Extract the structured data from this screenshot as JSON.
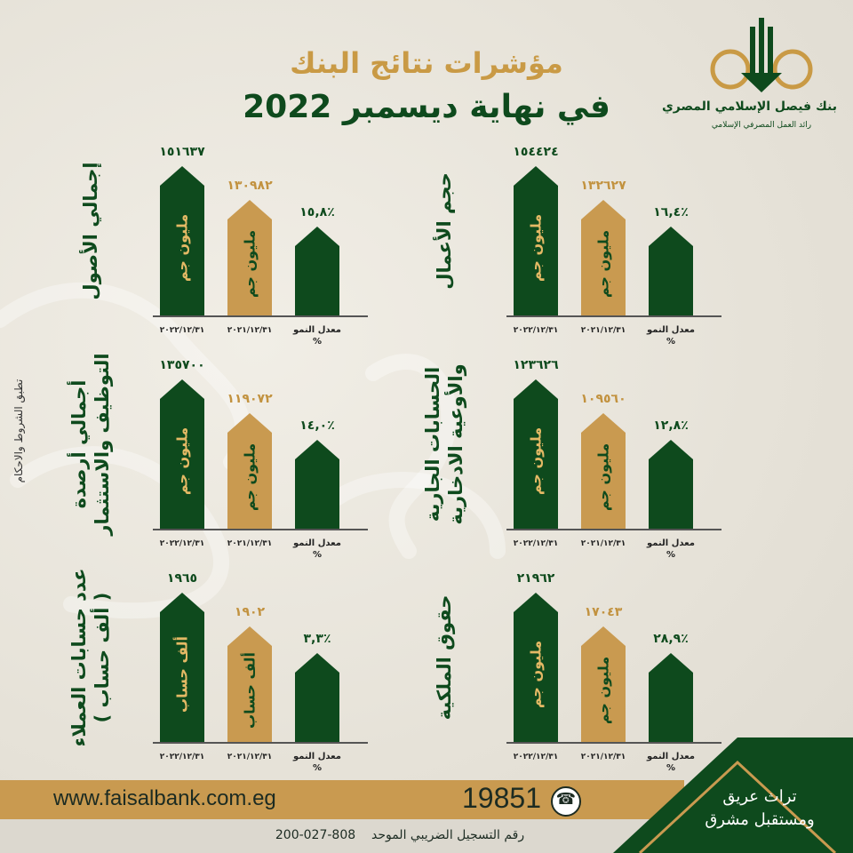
{
  "title_line1": "مؤشرات نتائج البنك",
  "title_line2": "في نهاية ديسمبر 2022",
  "logo": {
    "name": "بنك فيصل الإسلامي المصري",
    "tagline": "رائد العمل المصرفي الإسلامي"
  },
  "terms_note": "تطبق الشروط والاحكام",
  "date_label_current": "٢٠٢٢/١٢/٣١",
  "date_label_previous": "٢٠٢١/١٢/٣١",
  "growth_label_line1": "معدل النمو",
  "growth_label_line2": "%",
  "panels": [
    {
      "label": "حجم الأعمال",
      "current_value": "١٥٤٤٢٤",
      "previous_value": "١٣٢٦٢٧",
      "growth": "١٦,٤٪",
      "unit": "مليون جم"
    },
    {
      "label": "إجمالي الأصول",
      "current_value": "١٥١٦٣٧",
      "previous_value": "١٣٠٩٨٢",
      "growth": "١٥,٨٪",
      "unit": "مليون جم"
    },
    {
      "label_line1": "الحسابات الجارية",
      "label_line2": "والأوعية الادخارية",
      "current_value": "١٢٣٦٢٦",
      "previous_value": "١٠٩٥٦٠",
      "growth": "١٢,٨٪",
      "unit": "مليون جم"
    },
    {
      "label_line1": "أجمالي أرصدة",
      "label_line2": "التوظيف والاستثمار",
      "current_value": "١٣٥٧٠٠",
      "previous_value": "١١٩٠٧٢",
      "growth": "١٤,٠٪",
      "unit": "مليون جم"
    },
    {
      "label": "حقوق الملكية",
      "current_value": "٢١٩٦٢",
      "previous_value": "١٧٠٤٣",
      "growth": "٢٨,٩٪",
      "unit": "مليون جم"
    },
    {
      "label_line1": "عدد حسابات العملاء",
      "label_line2": "( ألف حساب )",
      "current_value": "١٩٦٥",
      "previous_value": "١٩٠٢",
      "growth": "٣,٣٪",
      "unit": "ألف حساب"
    }
  ],
  "footer": {
    "website": "www.faisalbank.com.eg",
    "hotline": "19851",
    "tax_id_label": "رقم التسجيل الضريبي الموحد",
    "tax_id": "200-027-808",
    "slogan_line1": "تراث عريق",
    "slogan_line2": "ومستقبل مشرق"
  },
  "colors": {
    "dark_green": "#0e4a1d",
    "gold": "#c99a50",
    "background": "#e9e6dd"
  }
}
